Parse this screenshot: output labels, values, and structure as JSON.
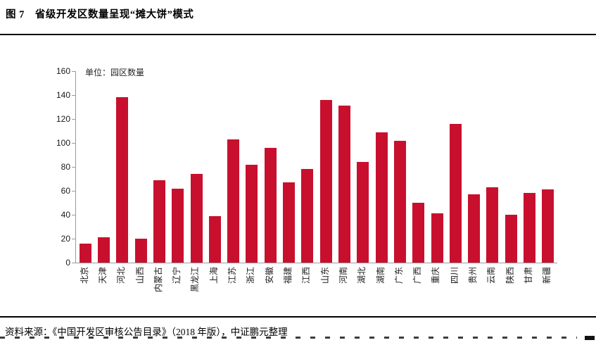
{
  "figure": {
    "title": "图 7　省级开发区数量呈现“摊大饼”模式",
    "source": "资料来源：《中国开发区审核公告目录》（2018 年版），中证鹏元整理"
  },
  "chart_data": {
    "type": "bar",
    "title": "省级开发区数量呈现“摊大饼”模式",
    "unit_label": "单位：园区数量",
    "categories": [
      "北京",
      "天津",
      "河北",
      "山西",
      "内蒙古",
      "辽宁",
      "黑龙江",
      "上海",
      "江苏",
      "浙江",
      "安徽",
      "福建",
      "江西",
      "山东",
      "河南",
      "湖北",
      "湖南",
      "广东",
      "广西",
      "重庆",
      "四川",
      "贵州",
      "云南",
      "陕西",
      "甘肃",
      "新疆"
    ],
    "values": [
      16,
      21,
      138,
      20,
      69,
      62,
      74,
      39,
      103,
      82,
      96,
      67,
      78,
      136,
      131,
      84,
      109,
      102,
      50,
      41,
      116,
      57,
      63,
      40,
      58,
      61
    ],
    "ylim": [
      0,
      160
    ],
    "yticks": [
      0,
      20,
      40,
      60,
      80,
      100,
      120,
      140,
      160
    ],
    "bar_color": "#C8102E",
    "axis_color": "#9b9b9b",
    "grid": "off",
    "legend": "none",
    "xlabel_rotation": -90
  }
}
